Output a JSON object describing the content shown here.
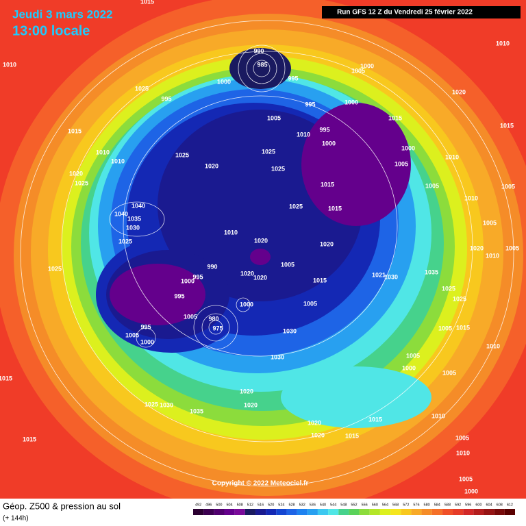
{
  "header": {
    "date": "Jeudi 3 mars 2022",
    "time": "13:00 locale",
    "run": "Run GFS 12 Z du Vendredi 25 février 2022"
  },
  "copyright": "Copyright © 2022 Meteociel.fr",
  "footer": {
    "title": "Géop. Z500 & pression au sol",
    "subtitle": "(+ 144h)"
  },
  "legend": {
    "values": [
      492,
      496,
      500,
      504,
      508,
      512,
      516,
      520,
      524,
      528,
      532,
      536,
      540,
      544,
      548,
      552,
      556,
      560,
      564,
      568,
      572,
      576,
      580,
      584,
      588,
      592,
      596,
      600,
      604,
      608,
      612
    ],
    "colors": [
      "#2a0030",
      "#3c0050",
      "#50006e",
      "#64008c",
      "#7a0a9a",
      "#1a1a60",
      "#1a1a90",
      "#1428b4",
      "#1446d2",
      "#1e64e6",
      "#1e82f0",
      "#28a0f0",
      "#3cc8f0",
      "#50e6e6",
      "#46d28c",
      "#5ad25a",
      "#8cdc3c",
      "#b4e628",
      "#dcf01e",
      "#f5e61e",
      "#f8c81e",
      "#f8aa28",
      "#f58c28",
      "#f57028",
      "#f05028",
      "#e63c28",
      "#d22828",
      "#b41e1e",
      "#961414",
      "#780a0a",
      "#5a0000"
    ]
  },
  "isobar_labels": [
    "990",
    "985",
    "1000",
    "995",
    "1000",
    "1005",
    "1025",
    "995",
    "995",
    "1000",
    "1005",
    "995",
    "1010",
    "1000",
    "1015",
    "1000",
    "1005",
    "1010",
    "1025",
    "1025",
    "1020",
    "1025",
    "1015",
    "1025",
    "1015",
    "1005",
    "1010",
    "1010",
    "1020",
    "1020",
    "990",
    "995",
    "1000",
    "995",
    "1005",
    "1020",
    "1020",
    "1015",
    "1005",
    "975",
    "980",
    "1000",
    "995",
    "1005",
    "1000",
    "1005",
    "1030",
    "1030",
    "1020",
    "1020",
    "1020",
    "1015",
    "1015",
    "1020",
    "1000",
    "1005",
    "1010",
    "1005",
    "1010",
    "1005",
    "1000",
    "1035",
    "1030",
    "1025",
    "1015",
    "1015",
    "1020",
    "1025",
    "1015",
    "1010",
    "1010",
    "1040",
    "1040",
    "1035",
    "1030",
    "1025",
    "1025",
    "1010",
    "1020",
    "1015",
    "1005",
    "1005",
    "1005",
    "1020",
    "1010",
    "1035",
    "1030",
    "1021",
    "1025",
    "1025",
    "1015",
    "1010",
    "1005",
    "1005",
    "1015",
    "1010"
  ]
}
